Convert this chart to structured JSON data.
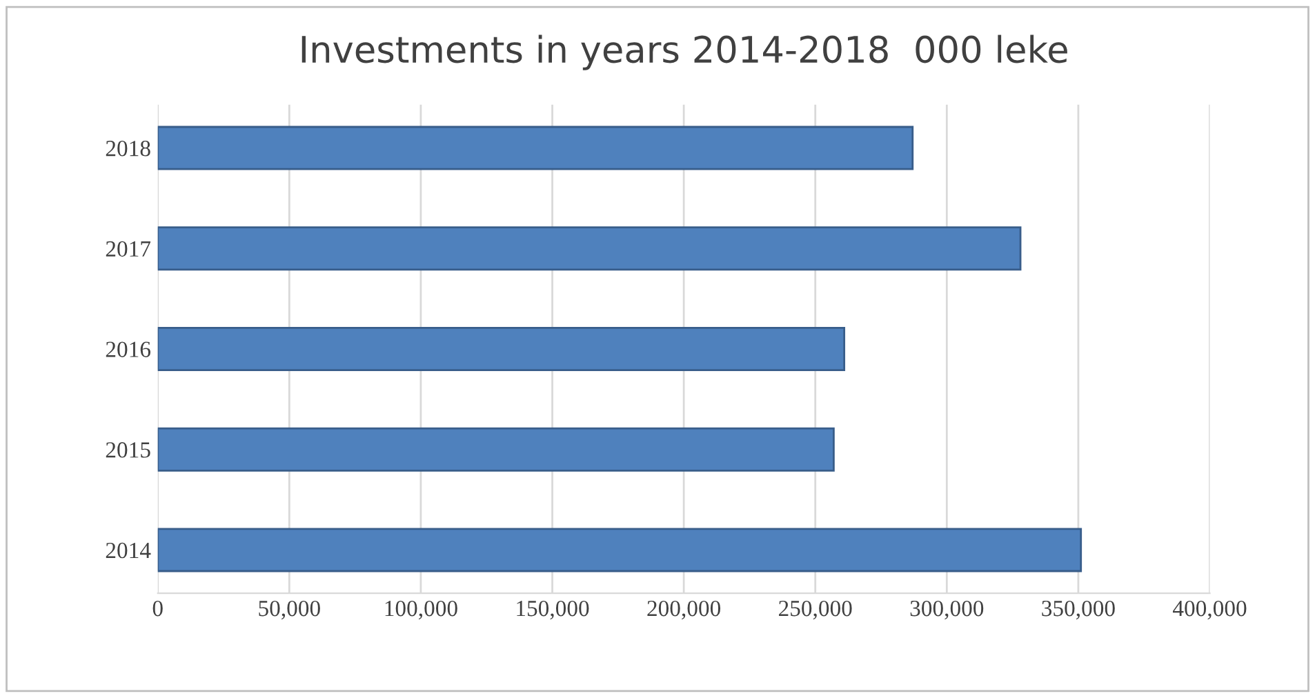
{
  "chart_data": {
    "type": "bar",
    "orientation": "horizontal",
    "title": "Investments in years 2014-2018  000 leke",
    "categories": [
      "2018",
      "2017",
      "2016",
      "2015",
      "2014"
    ],
    "values": [
      287000,
      328000,
      261000,
      257000,
      351000
    ],
    "color": "#4f81bd",
    "xlim": [
      0,
      400000
    ],
    "xticks": [
      {
        "value": 0,
        "label": "0"
      },
      {
        "value": 50000,
        "label": "50,000"
      },
      {
        "value": 100000,
        "label": "100,000"
      },
      {
        "value": 150000,
        "label": "150,000"
      },
      {
        "value": 200000,
        "label": "200,000"
      },
      {
        "value": 250000,
        "label": "250,000"
      },
      {
        "value": 300000,
        "label": "300,000"
      },
      {
        "value": 350000,
        "label": "350,000"
      },
      {
        "value": 400000,
        "label": "400,000"
      }
    ],
    "grid": "x"
  }
}
